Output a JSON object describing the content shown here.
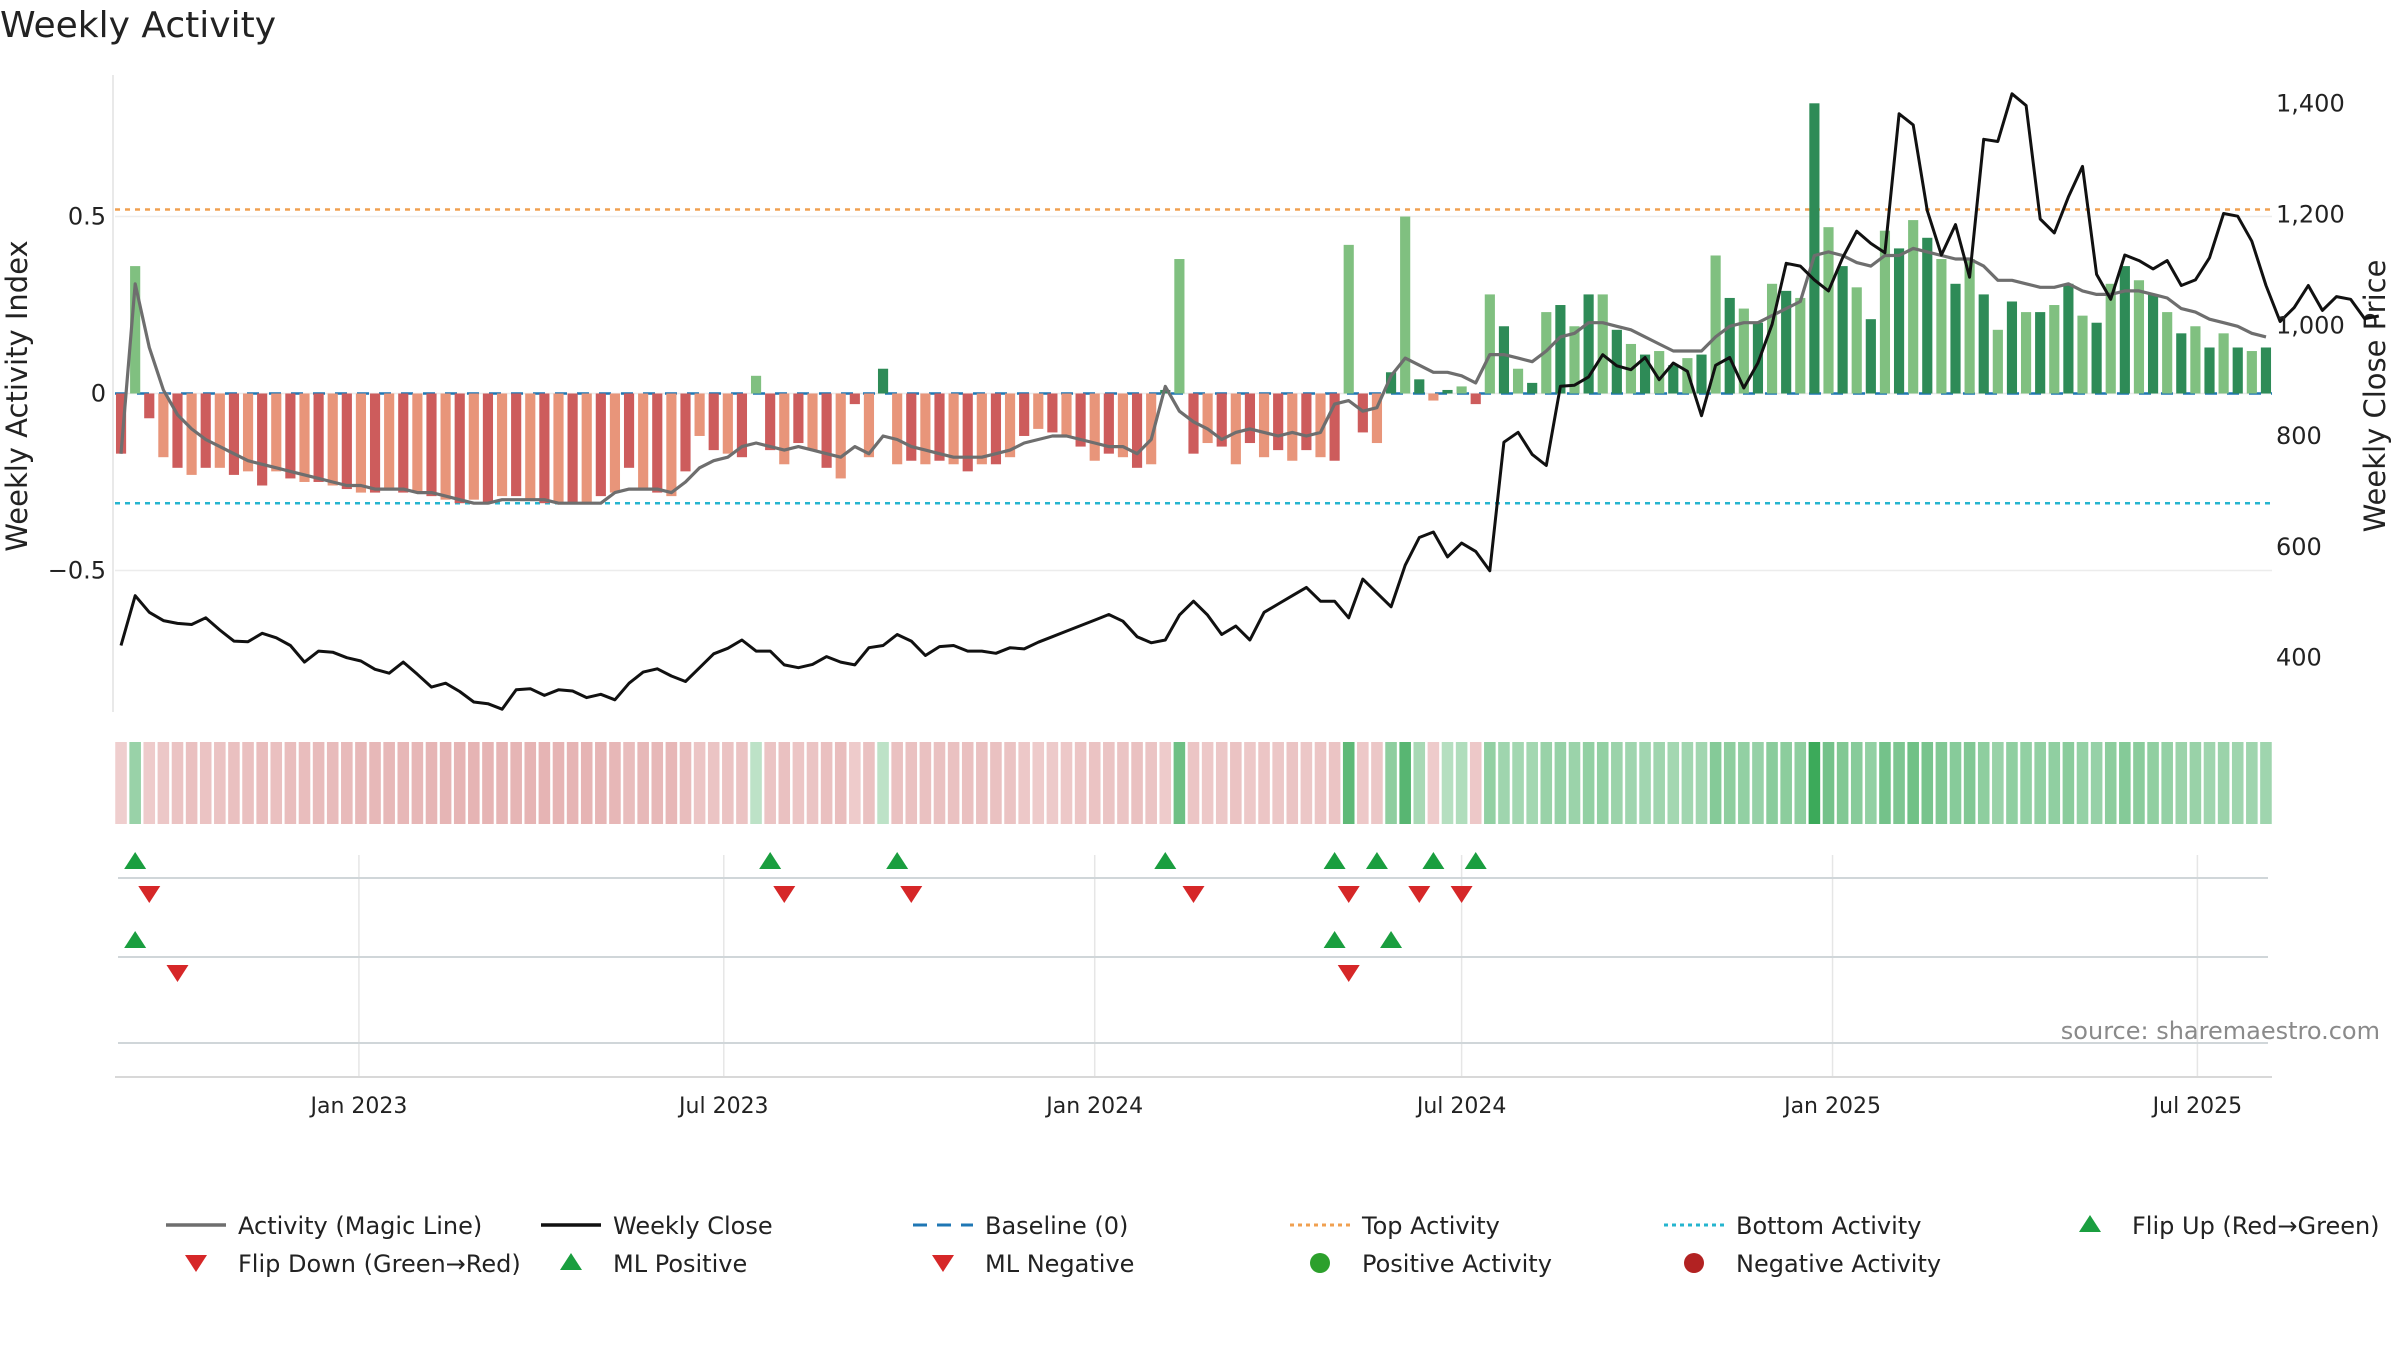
{
  "chart_data": {
    "type": "bar",
    "title": "Weekly Activity",
    "ylabel_left": "Weekly Activity Index",
    "ylabel_right": "Weekly Close Price",
    "source_text": "source: sharemaestro.com",
    "x_start": "2022-09-05",
    "x_step_days": 7,
    "x_ticks": [
      {
        "date": "2023-01-01",
        "label": "Jan 2023"
      },
      {
        "date": "2023-07-01",
        "label": "Jul 2023"
      },
      {
        "date": "2024-01-01",
        "label": "Jan 2024"
      },
      {
        "date": "2024-07-01",
        "label": "Jul 2024"
      },
      {
        "date": "2025-01-01",
        "label": "Jan 2025"
      },
      {
        "date": "2025-07-01",
        "label": "Jul 2025"
      }
    ],
    "y_left": {
      "min": -0.9,
      "max": 0.9,
      "ticks": [
        {
          "value": 0.5,
          "label": "0.5"
        },
        {
          "value": 0,
          "label": "0"
        },
        {
          "value": -0.5,
          "label": "−0.5"
        }
      ]
    },
    "y_right": {
      "min": 300,
      "max": 1450,
      "ticks": [
        {
          "value": 1400,
          "label": "1,400"
        },
        {
          "value": 1200,
          "label": "1,200"
        },
        {
          "value": 1000,
          "label": "1,000"
        },
        {
          "value": 800,
          "label": "800"
        },
        {
          "value": 600,
          "label": "600"
        },
        {
          "value": 400,
          "label": "400"
        }
      ]
    },
    "top_activity": 0.52,
    "bottom_activity": -0.31,
    "baseline": 0,
    "activity": [
      -0.17,
      0.36,
      -0.07,
      -0.18,
      -0.21,
      -0.23,
      -0.21,
      -0.21,
      -0.23,
      -0.22,
      -0.26,
      -0.22,
      -0.24,
      -0.25,
      -0.25,
      -0.26,
      -0.27,
      -0.28,
      -0.28,
      -0.27,
      -0.28,
      -0.28,
      -0.29,
      -0.3,
      -0.31,
      -0.3,
      -0.31,
      -0.29,
      -0.29,
      -0.3,
      -0.31,
      -0.31,
      -0.31,
      -0.31,
      -0.29,
      -0.28,
      -0.21,
      -0.27,
      -0.28,
      -0.29,
      -0.22,
      -0.12,
      -0.16,
      -0.17,
      -0.18,
      0.05,
      -0.16,
      -0.2,
      -0.14,
      -0.16,
      -0.21,
      -0.24,
      -0.03,
      -0.18,
      0.07,
      -0.2,
      -0.19,
      -0.2,
      -0.19,
      -0.2,
      -0.22,
      -0.2,
      -0.2,
      -0.18,
      -0.12,
      -0.1,
      -0.11,
      -0.12,
      -0.15,
      -0.19,
      -0.17,
      -0.18,
      -0.21,
      -0.2,
      0.01,
      0.38,
      -0.17,
      -0.14,
      -0.15,
      -0.2,
      -0.14,
      -0.18,
      -0.16,
      -0.19,
      -0.16,
      -0.18,
      -0.19,
      0.42,
      -0.11,
      -0.14,
      0.06,
      0.5,
      0.04,
      -0.02,
      0.01,
      0.02,
      -0.03,
      0.28,
      0.19,
      0.07,
      0.03,
      0.23,
      0.25,
      0.19,
      0.28,
      0.28,
      0.18,
      0.14,
      0.11,
      0.12,
      0.08,
      0.1,
      0.11,
      0.39,
      0.27,
      0.24,
      0.2,
      0.31,
      0.29,
      0.27,
      0.82,
      0.47,
      0.36,
      0.3,
      0.21,
      0.46,
      0.41,
      0.49,
      0.44,
      0.38,
      0.31,
      0.38,
      0.28,
      0.18,
      0.26,
      0.23,
      0.23,
      0.25,
      0.31,
      0.22,
      0.2,
      0.31,
      0.36,
      0.32,
      0.28,
      0.23,
      0.17,
      0.19,
      0.13,
      0.17,
      0.13,
      0.12,
      0.13
    ],
    "magic_line": [
      -0.17,
      0.31,
      0.13,
      0.01,
      -0.06,
      -0.1,
      -0.13,
      -0.15,
      -0.17,
      -0.19,
      -0.2,
      -0.21,
      -0.22,
      -0.23,
      -0.24,
      -0.25,
      -0.26,
      -0.26,
      -0.27,
      -0.27,
      -0.27,
      -0.28,
      -0.28,
      -0.29,
      -0.3,
      -0.31,
      -0.31,
      -0.3,
      -0.3,
      -0.3,
      -0.3,
      -0.31,
      -0.31,
      -0.31,
      -0.31,
      -0.28,
      -0.27,
      -0.27,
      -0.27,
      -0.28,
      -0.25,
      -0.21,
      -0.19,
      -0.18,
      -0.15,
      -0.14,
      -0.15,
      -0.16,
      -0.15,
      -0.16,
      -0.17,
      -0.18,
      -0.15,
      -0.17,
      -0.12,
      -0.13,
      -0.15,
      -0.16,
      -0.17,
      -0.18,
      -0.18,
      -0.18,
      -0.17,
      -0.16,
      -0.14,
      -0.13,
      -0.12,
      -0.12,
      -0.13,
      -0.14,
      -0.15,
      -0.15,
      -0.17,
      -0.13,
      0.02,
      -0.05,
      -0.08,
      -0.1,
      -0.13,
      -0.11,
      -0.1,
      -0.11,
      -0.12,
      -0.11,
      -0.12,
      -0.11,
      -0.03,
      -0.02,
      -0.05,
      -0.04,
      0.05,
      0.1,
      0.08,
      0.06,
      0.06,
      0.05,
      0.03,
      0.11,
      0.11,
      0.1,
      0.09,
      0.12,
      0.16,
      0.17,
      0.2,
      0.2,
      0.19,
      0.18,
      0.16,
      0.14,
      0.12,
      0.12,
      0.12,
      0.16,
      0.19,
      0.2,
      0.2,
      0.22,
      0.24,
      0.26,
      0.39,
      0.4,
      0.39,
      0.37,
      0.36,
      0.39,
      0.39,
      0.41,
      0.4,
      0.39,
      0.38,
      0.38,
      0.36,
      0.32,
      0.32,
      0.31,
      0.3,
      0.3,
      0.31,
      0.29,
      0.28,
      0.28,
      0.29,
      0.29,
      0.28,
      0.27,
      0.24,
      0.23,
      0.21,
      0.2,
      0.19,
      0.17,
      0.16
    ],
    "weekly_close": [
      420,
      510,
      480,
      465,
      460,
      458,
      470,
      448,
      428,
      427,
      442,
      434,
      420,
      390,
      410,
      408,
      398,
      392,
      377,
      370,
      390,
      368,
      345,
      352,
      337,
      318,
      315,
      305,
      340,
      342,
      330,
      340,
      338,
      326,
      332,
      322,
      352,
      372,
      378,
      365,
      355,
      380,
      405,
      415,
      430,
      410,
      410,
      385,
      380,
      386,
      400,
      390,
      385,
      416,
      420,
      440,
      428,
      402,
      418,
      420,
      410,
      410,
      406,
      416,
      414,
      426,
      436,
      446,
      456,
      466,
      476,
      464,
      436,
      425,
      430,
      475,
      500,
      475,
      440,
      455,
      430,
      480,
      495,
      510,
      525,
      500,
      500,
      470,
      540,
      515,
      490,
      565,
      615,
      625,
      580,
      605,
      590,
      555,
      787,
      805,
      765,
      745,
      888,
      890,
      905,
      945,
      925,
      918,
      940,
      900,
      930,
      915,
      835,
      926,
      940,
      885,
      930,
      1000,
      1110,
      1105,
      1080,
      1060,
      1120,
      1168,
      1146,
      1129,
      1380,
      1360,
      1205,
      1125,
      1180,
      1085,
      1334,
      1330,
      1416,
      1395,
      1190,
      1165,
      1230,
      1285,
      1090,
      1045,
      1125,
      1115,
      1100,
      1115,
      1070,
      1080,
      1120,
      1200,
      1195,
      1150,
      1070,
      1005,
      1030,
      1070,
      1025,
      1050,
      1045,
      1010,
      1015
    ],
    "strip_values": [
      -0.1,
      0.25,
      -0.12,
      -0.15,
      -0.18,
      -0.2,
      -0.18,
      -0.18,
      -0.2,
      -0.2,
      -0.22,
      -0.2,
      -0.22,
      -0.22,
      -0.23,
      -0.23,
      -0.24,
      -0.25,
      -0.25,
      -0.25,
      -0.26,
      -0.26,
      -0.27,
      -0.27,
      -0.28,
      -0.28,
      -0.28,
      -0.27,
      -0.27,
      -0.28,
      -0.28,
      -0.28,
      -0.28,
      -0.28,
      -0.27,
      -0.26,
      -0.22,
      -0.25,
      -0.25,
      -0.26,
      -0.22,
      -0.16,
      -0.17,
      -0.18,
      -0.18,
      0.08,
      -0.17,
      -0.19,
      -0.16,
      -0.17,
      -0.2,
      -0.22,
      -0.12,
      -0.19,
      0.08,
      -0.19,
      -0.19,
      -0.19,
      -0.19,
      -0.19,
      -0.2,
      -0.19,
      -0.19,
      -0.18,
      -0.14,
      -0.12,
      -0.13,
      -0.14,
      -0.16,
      -0.18,
      -0.17,
      -0.17,
      -0.19,
      -0.17,
      -0.12,
      0.45,
      -0.16,
      -0.14,
      -0.15,
      -0.18,
      -0.14,
      -0.16,
      -0.15,
      -0.17,
      -0.15,
      -0.16,
      -0.17,
      0.52,
      -0.14,
      -0.15,
      0.3,
      0.55,
      0.18,
      -0.12,
      0.12,
      0.14,
      -0.14,
      0.28,
      0.22,
      0.2,
      0.2,
      0.25,
      0.26,
      0.24,
      0.28,
      0.28,
      0.24,
      0.22,
      0.21,
      0.22,
      0.2,
      0.21,
      0.21,
      0.34,
      0.3,
      0.28,
      0.26,
      0.32,
      0.31,
      0.3,
      0.8,
      0.42,
      0.36,
      0.33,
      0.28,
      0.42,
      0.38,
      0.44,
      0.4,
      0.36,
      0.33,
      0.36,
      0.3,
      0.25,
      0.29,
      0.28,
      0.28,
      0.29,
      0.32,
      0.27,
      0.26,
      0.31,
      0.34,
      0.32,
      0.29,
      0.27,
      0.24,
      0.25,
      0.22,
      0.24,
      0.22,
      0.22,
      0.22
    ],
    "flip_up_weeks": [
      1,
      46,
      55,
      74,
      86,
      89,
      93,
      96
    ],
    "flip_down_weeks": [
      2,
      47,
      56,
      76,
      87,
      92,
      95
    ],
    "ml_positive_weeks": [
      1,
      86,
      90
    ],
    "ml_negative_weeks": [
      4,
      87
    ],
    "colors": {
      "positive_strong": "#2e8b57",
      "positive_light": "#80c080",
      "negative_strong": "#cd5c5c",
      "negative_light": "#e8957a",
      "magic_line": "#6e6e6e",
      "weekly_close": "#111111",
      "baseline": "#1f77b4",
      "top_activity": "#f0a050",
      "bottom_activity": "#25b5cf",
      "marker_up": "#1a9e3f",
      "marker_down": "#d62728",
      "positive_dot": "#2ca02c",
      "negative_dot": "#b22222"
    },
    "legend": [
      {
        "key": "magic",
        "label": "Activity (Magic Line)",
        "symbol": "line",
        "color": "#6e6e6e"
      },
      {
        "key": "close",
        "label": "Weekly Close",
        "symbol": "line",
        "color": "#111111"
      },
      {
        "key": "baseline",
        "label": "Baseline (0)",
        "symbol": "dashed",
        "color": "#1f77b4"
      },
      {
        "key": "top",
        "label": "Top Activity",
        "symbol": "dotted",
        "color": "#f0a050"
      },
      {
        "key": "bottom",
        "label": "Bottom Activity",
        "symbol": "dotted",
        "color": "#25b5cf"
      },
      {
        "key": "flipup",
        "label": "Flip Up (Red→Green)",
        "symbol": "tri-up",
        "color": "#1a9e3f"
      },
      {
        "key": "flipdown",
        "label": "Flip Down (Green→Red)",
        "symbol": "tri-down",
        "color": "#d62728"
      },
      {
        "key": "mlpos",
        "label": "ML Positive",
        "symbol": "tri-up",
        "color": "#1a9e3f"
      },
      {
        "key": "mlneg",
        "label": "ML Negative",
        "symbol": "tri-down",
        "color": "#d62728"
      },
      {
        "key": "posact",
        "label": "Positive Activity",
        "symbol": "dot",
        "color": "#2ca02c"
      },
      {
        "key": "negact",
        "label": "Negative Activity",
        "symbol": "dot",
        "color": "#b22222"
      }
    ]
  }
}
